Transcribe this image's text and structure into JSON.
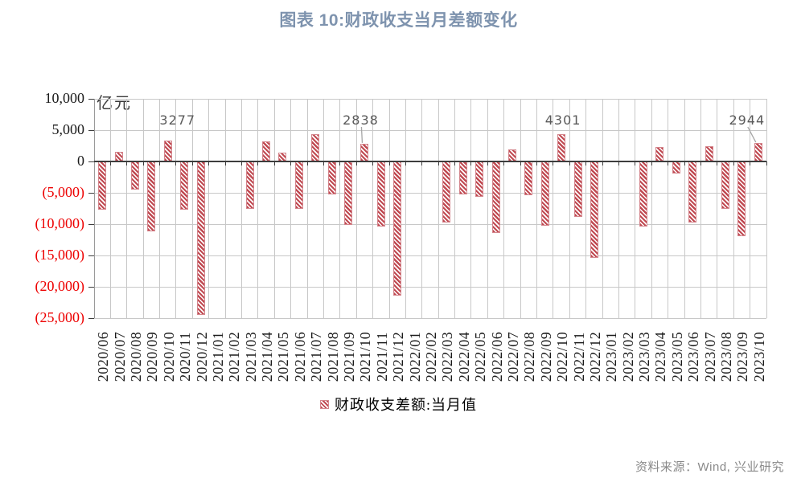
{
  "title": "图表 10:财政收支当月差额变化",
  "axis_unit": "亿元",
  "legend": {
    "label": "财政收支差额:当月值"
  },
  "source": "资料来源：Wind, 兴业研究",
  "colors": {
    "title": "#7E93AE",
    "bar_stripe": "#C04A52",
    "bar_border": "#D4868D",
    "negative_tick": "#ED0000",
    "positive_tick": "#1a1a1a",
    "gridline": "#C8C8C8",
    "zero_line": "#3D3D3D",
    "axis_line": "#9A9A9A",
    "annotation": "#595959",
    "leader": "#A6A6A6",
    "source_text": "#8A8A8A"
  },
  "chart_data": {
    "type": "bar",
    "title": "图表 10:财政收支当月差额变化",
    "ylabel_unit": "亿元",
    "ylim": [
      -25000,
      10000
    ],
    "ytick_step": 5000,
    "y_ticks": [
      "10,000",
      "5,000",
      "0",
      "(5,000)",
      "(10,000)",
      "(15,000)",
      "(20,000)",
      "(25,000)"
    ],
    "grid": true,
    "legend_position": "bottom",
    "legend": [
      "财政收支差额:当月值"
    ],
    "series_name": "财政收支差额:当月值",
    "categories": [
      "2020/06",
      "2020/07",
      "2020/08",
      "2020/09",
      "2020/10",
      "2020/11",
      "2020/12",
      "2021/01",
      "2021/02",
      "2021/03",
      "2021/04",
      "2021/05",
      "2021/06",
      "2021/07",
      "2021/08",
      "2021/09",
      "2021/10",
      "2021/11",
      "2021/12",
      "2022/01",
      "2022/02",
      "2022/03",
      "2022/04",
      "2022/05",
      "2022/06",
      "2022/07",
      "2022/08",
      "2022/09",
      "2022/10",
      "2022/11",
      "2022/12",
      "2023/01",
      "2023/02",
      "2023/03",
      "2023/04",
      "2023/05",
      "2023/06",
      "2023/07",
      "2023/08",
      "2023/09",
      "2023/10"
    ],
    "values": [
      -7700,
      1500,
      -4500,
      -11200,
      3277,
      -7700,
      -24500,
      null,
      null,
      -7600,
      3200,
      1400,
      -7600,
      4400,
      -5200,
      -10100,
      2838,
      -10400,
      -21400,
      null,
      null,
      -9700,
      -5200,
      -5700,
      -11400,
      1900,
      -5400,
      -10200,
      4301,
      -8900,
      -15400,
      null,
      null,
      -10400,
      2300,
      -1900,
      -9800,
      2500,
      -7500,
      -11900,
      2944
    ],
    "annotations": [
      {
        "text": "3277",
        "index": 4,
        "dx": 12,
        "leader": false
      },
      {
        "text": "2838",
        "index": 16,
        "dx": -5,
        "leader": true
      },
      {
        "text": "4301",
        "index": 28,
        "dx": 2,
        "leader": false
      },
      {
        "text": "2944",
        "index": 40,
        "dx": -14,
        "leader": true
      }
    ]
  }
}
